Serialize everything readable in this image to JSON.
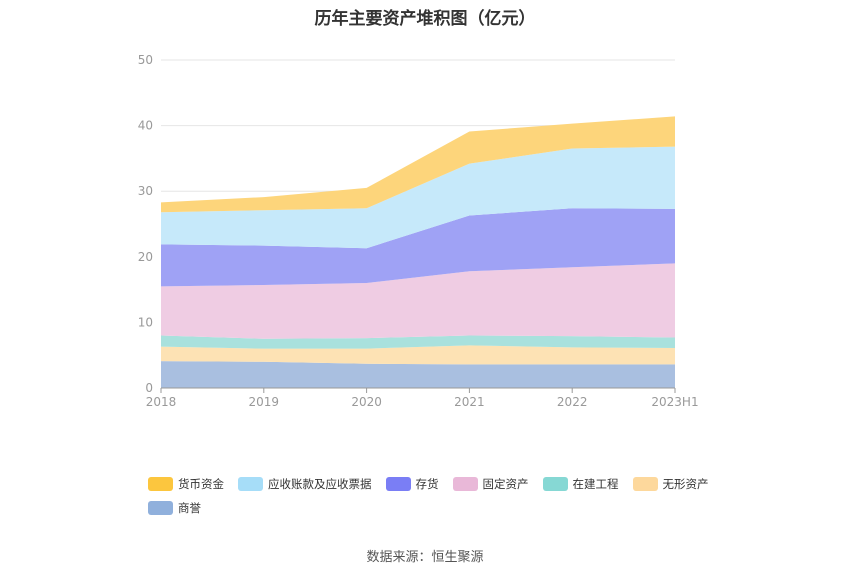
{
  "chart_data": {
    "type": "area",
    "stacked": true,
    "title": "历年主要资产堆积图（亿元）",
    "categories": [
      "2018",
      "2019",
      "2020",
      "2021",
      "2022",
      "2023H1"
    ],
    "ylim": [
      0,
      50
    ],
    "yticks": [
      "0",
      "10",
      "20",
      "30",
      "40",
      "50"
    ],
    "grid": true,
    "series": [
      {
        "name": "商誉",
        "color": "#a9bfe0",
        "legend_color": "#90b0dc",
        "values": [
          4.1,
          4.0,
          3.7,
          3.6,
          3.6,
          3.6
        ]
      },
      {
        "name": "无形资产",
        "color": "#fde2b4",
        "legend_color": "#fdd89c",
        "values": [
          2.2,
          2.0,
          2.3,
          2.9,
          2.6,
          2.5
        ]
      },
      {
        "name": "在建工程",
        "color": "#a9e1dd",
        "legend_color": "#86d8d4",
        "values": [
          1.7,
          1.5,
          1.6,
          1.5,
          1.7,
          1.6
        ]
      },
      {
        "name": "固定资产",
        "color": "#efcce3",
        "legend_color": "#e9b8d8",
        "values": [
          7.5,
          8.2,
          8.4,
          9.8,
          10.5,
          11.3
        ]
      },
      {
        "name": "存货",
        "color": "#9fa2f5",
        "legend_color": "#7a7ef5",
        "values": [
          6.4,
          6.0,
          5.3,
          8.5,
          9.0,
          8.3
        ]
      },
      {
        "name": "应收账款及应收票据",
        "color": "#c6e9fa",
        "legend_color": "#a6ddf8",
        "values": [
          4.9,
          5.4,
          6.1,
          7.9,
          9.1,
          9.5
        ]
      },
      {
        "name": "货币资金",
        "color": "#fdd57b",
        "legend_color": "#fcc63e",
        "values": [
          1.5,
          2.0,
          3.1,
          4.9,
          3.8,
          4.6
        ]
      }
    ]
  },
  "footer": {
    "source": "数据来源：恒生聚源"
  }
}
